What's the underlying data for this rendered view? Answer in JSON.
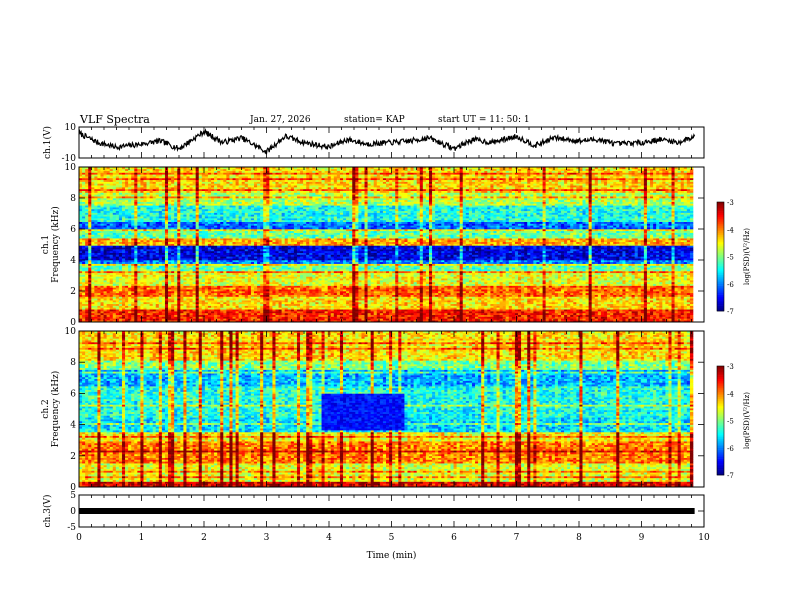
{
  "header": {
    "title": "VLF Spectra",
    "date": "Jan. 27, 2026",
    "station": "station= KAP",
    "start": "start  UT =   11: 50: 1"
  },
  "chart_data": [
    {
      "type": "line",
      "name": "ch1-waveform",
      "ylabel": "ch.1(V)",
      "ylim": [
        -10,
        10
      ],
      "yticks": [
        "10",
        "-10"
      ],
      "xlim": [
        0,
        10
      ],
      "x": [
        0.0,
        0.3,
        0.6,
        1.0,
        1.3,
        1.6,
        2.0,
        2.3,
        2.6,
        3.0,
        3.3,
        3.6,
        4.0,
        4.3,
        4.6,
        5.0,
        5.3,
        5.6,
        6.0,
        6.3,
        6.6,
        7.0,
        7.3,
        7.6,
        8.0,
        8.3,
        8.6,
        9.0,
        9.3,
        9.6,
        9.85
      ],
      "y": [
        6,
        0,
        -3,
        -1,
        1,
        -4,
        7,
        0,
        3,
        -6,
        4,
        0,
        -3,
        2,
        -1,
        0,
        1,
        3,
        -4,
        2,
        0,
        4,
        -2,
        3,
        1,
        2,
        -1,
        0,
        2,
        0,
        4
      ]
    },
    {
      "type": "heatmap",
      "name": "ch1-spectrogram",
      "ylabel": "ch.1\nFrequency (kHz)",
      "xlim": [
        0,
        10
      ],
      "ylim": [
        0,
        10
      ],
      "yticks": [
        "0",
        "2",
        "4",
        "6",
        "8",
        "10"
      ],
      "colorbar": {
        "label": "log(PSD)(V²/Hz)",
        "range": [
          -7,
          -3
        ],
        "ticks": [
          "-3",
          "-4",
          "-5",
          "-6",
          "-7"
        ]
      },
      "bands": [
        {
          "f": [
            0.0,
            0.8
          ],
          "v": -3.6
        },
        {
          "f": [
            0.8,
            1.6
          ],
          "v": -4.4
        },
        {
          "f": [
            1.6,
            2.4
          ],
          "v": -3.9
        },
        {
          "f": [
            2.4,
            3.3
          ],
          "v": -4.6
        },
        {
          "f": [
            3.3,
            3.8
          ],
          "v": -5.1
        },
        {
          "f": [
            3.8,
            5.0
          ],
          "v": -6.6
        },
        {
          "f": [
            5.0,
            5.4
          ],
          "v": -4.2
        },
        {
          "f": [
            5.4,
            6.0
          ],
          "v": -5.1
        },
        {
          "f": [
            6.0,
            6.5
          ],
          "v": -6.1
        },
        {
          "f": [
            6.5,
            7.5
          ],
          "v": -5.4
        },
        {
          "f": [
            7.5,
            8.3
          ],
          "v": -4.8
        },
        {
          "f": [
            8.3,
            10.0
          ],
          "v": -4.4
        }
      ]
    },
    {
      "type": "heatmap",
      "name": "ch2-spectrogram",
      "ylabel": "ch.2\nFrequency (kHz)",
      "xlim": [
        0,
        10
      ],
      "ylim": [
        0,
        10
      ],
      "yticks": [
        "0",
        "2",
        "4",
        "6",
        "8",
        "10"
      ],
      "colorbar": {
        "label": "log(PSD)(V²/Hz)",
        "range": [
          -7,
          -3
        ],
        "ticks": [
          "-3",
          "-4",
          "-5",
          "-6",
          "-7"
        ]
      },
      "bands": [
        {
          "f": [
            0.0,
            0.4
          ],
          "v": -3.4
        },
        {
          "f": [
            0.4,
            1.5
          ],
          "v": -4.6
        },
        {
          "f": [
            1.5,
            3.0
          ],
          "v": -4.0
        },
        {
          "f": [
            3.0,
            3.5
          ],
          "v": -4.5
        },
        {
          "f": [
            3.5,
            4.5
          ],
          "v": -5.6
        },
        {
          "f": [
            4.5,
            6.5
          ],
          "v": -5.4
        },
        {
          "f": [
            6.5,
            7.5
          ],
          "v": -5.8
        },
        {
          "f": [
            7.5,
            8.2
          ],
          "v": -5.0
        },
        {
          "f": [
            8.2,
            10.0
          ],
          "v": -4.4
        }
      ]
    },
    {
      "type": "line",
      "name": "ch3-waveform",
      "ylabel": "ch.3(V)",
      "ylim": [
        -5,
        5
      ],
      "yticks": [
        "5",
        "0",
        "-5"
      ],
      "xlim": [
        0,
        10
      ],
      "xlabel": "Time  (min)",
      "xticks": [
        "0",
        "1",
        "2",
        "3",
        "4",
        "5",
        "6",
        "7",
        "8",
        "9",
        "10"
      ],
      "x": [
        0,
        9.85
      ],
      "y": [
        0,
        0
      ]
    }
  ]
}
